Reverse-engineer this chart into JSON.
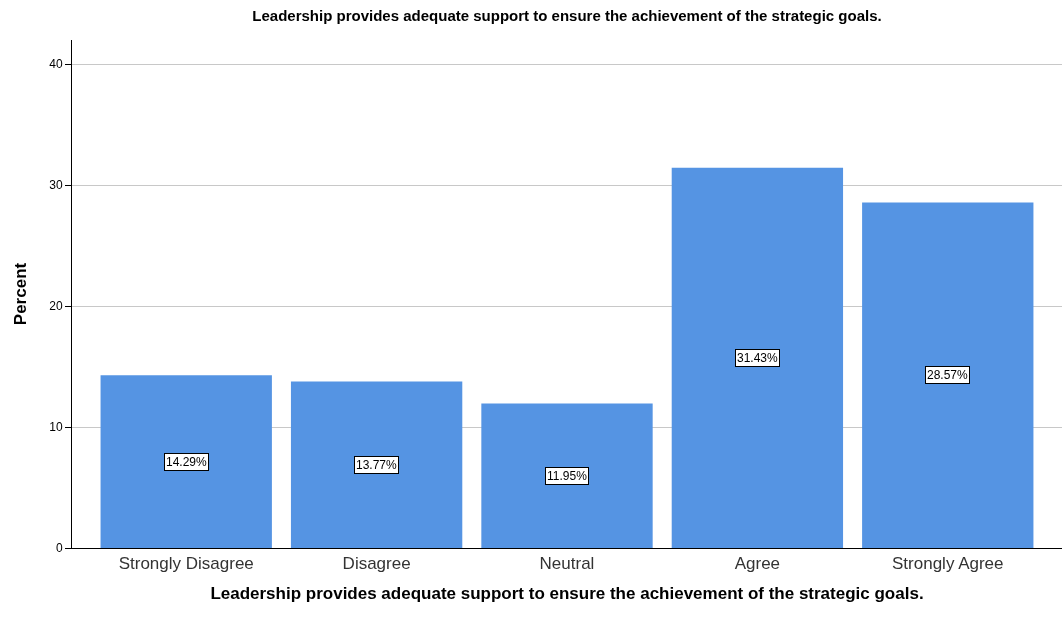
{
  "chart_data": {
    "type": "bar",
    "title": "Leadership provides adequate support to ensure the achievement of the strategic goals.",
    "xlabel": "Leadership provides adequate support to ensure the achievement of the strategic goals.",
    "ylabel": "Percent",
    "categories": [
      "Strongly Disagree",
      "Disagree",
      "Neutral",
      "Agree",
      "Strongly Agree"
    ],
    "values": [
      14.29,
      13.77,
      11.95,
      31.43,
      28.57
    ],
    "value_labels": [
      "14.29%",
      "13.77%",
      "11.95%",
      "31.43%",
      "28.57%"
    ],
    "color": "#5594e3",
    "ylim": [
      0,
      42
    ],
    "yticks": [
      0,
      10,
      20,
      30,
      40
    ],
    "grid": "y"
  }
}
